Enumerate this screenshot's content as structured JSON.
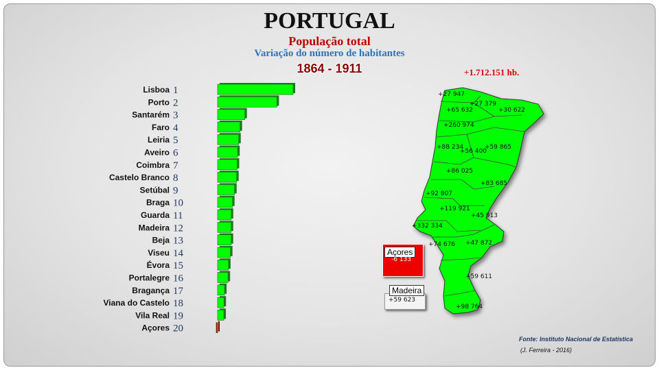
{
  "header": {
    "title": "PORTUGAL",
    "subtitle": "População total",
    "description": "Variação do número de habitantes",
    "period": "1864 - 1911"
  },
  "colors": {
    "bar": "#00ff00",
    "bar_dark": "#1e7b1e",
    "negative_bar": "#cc0000",
    "map_fill": "#00ff00",
    "acores_fill": "#ee0000"
  },
  "chart_data": {
    "type": "bar",
    "orientation": "horizontal",
    "value_labels_on_chart": false,
    "categories": [
      "Lisboa",
      "Porto",
      "Santarém",
      "Faro",
      "Leiria",
      "Aveiro",
      "Coimbra",
      "Castelo Branco",
      "Setúbal",
      "Braga",
      "Guarda",
      "Madeira",
      "Beja",
      "Viseu",
      "Évora",
      "Portalegre",
      "Bragança",
      "Viana do Castelo",
      "Vila Real",
      "Açores"
    ],
    "ranks": [
      "1",
      "2",
      "3",
      "4",
      "5",
      "6",
      "7",
      "8",
      "9",
      "10",
      "11",
      "12",
      "13",
      "14",
      "15",
      "16",
      "17",
      "18",
      "19",
      "20"
    ],
    "values": [
      332334,
      260974,
      119921,
      98764,
      92807,
      88234,
      86025,
      83685,
      74676,
      65632,
      59865,
      59623,
      59611,
      56400,
      47872,
      45913,
      30622,
      27947,
      27379,
      -6133
    ]
  },
  "map": {
    "total": "+1.712.151 hb.",
    "labels": [
      "+27 947",
      "+27 379",
      "+65 632",
      "+30 622",
      "+260 974",
      "+88 234",
      "+56 400",
      "+59 865",
      "+86 025",
      "+83 685",
      "+92 807",
      "+119 921",
      "+45 913",
      "+332 334",
      "+74 676",
      "+47 872",
      "+59 611",
      "+98 764"
    ],
    "acores": {
      "name": "Açores",
      "value": "-6 133"
    },
    "madeira": {
      "name": "Madeira",
      "value": "+59 623"
    }
  },
  "footer": {
    "source": "Fonte: Instituto Nacional de Estatística",
    "author": "(J. Ferreira - 2016)"
  }
}
